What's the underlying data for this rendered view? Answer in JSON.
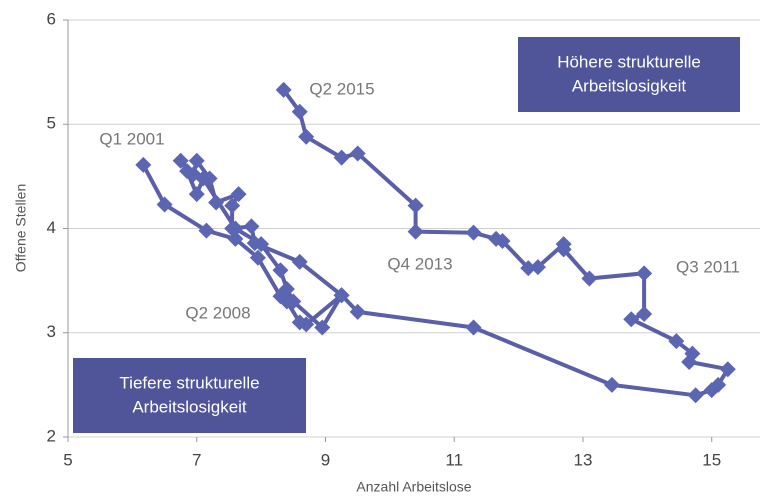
{
  "chart_data": {
    "type": "line",
    "x_label": "Anzahl Arbeitslose",
    "y_label": "Offene Stellen",
    "xlim": [
      5,
      15.75
    ],
    "xticks": [
      5,
      7,
      9,
      11,
      13,
      15
    ],
    "ylim": [
      2,
      6
    ],
    "yticks": [
      2,
      3,
      4,
      5,
      6
    ],
    "grid": true,
    "color": "#5a5fa8",
    "marker_color": "#5b66b3",
    "x": [
      6.17,
      6.5,
      7.15,
      7.6,
      7.95,
      8.3,
      8.4,
      8.6,
      8.7,
      9.25,
      8.6,
      7.9,
      7.85,
      7.55,
      7.55,
      7.65,
      7.3,
      7.2,
      7.0,
      6.95,
      6.75,
      6.85,
      7.0,
      7.1,
      7.6,
      8.0,
      8.3,
      8.4,
      8.5,
      8.95,
      9.25,
      9.5,
      11.3,
      13.45,
      14.75,
      15.0,
      15.1,
      15.25,
      14.65,
      14.7,
      14.45,
      13.75,
      13.95,
      13.95,
      13.1,
      12.7,
      12.7,
      12.3,
      12.15,
      11.75,
      11.65,
      11.3,
      10.4,
      10.4,
      9.5,
      9.25,
      8.7,
      8.6,
      8.35
    ],
    "values": [
      4.61,
      4.23,
      3.98,
      3.9,
      3.72,
      3.35,
      3.3,
      3.1,
      3.08,
      3.36,
      3.68,
      3.86,
      4.02,
      4.0,
      4.22,
      4.33,
      4.25,
      4.48,
      4.65,
      4.52,
      4.65,
      4.55,
      4.33,
      4.48,
      4.0,
      3.85,
      3.6,
      3.42,
      3.3,
      3.05,
      3.36,
      3.2,
      3.05,
      2.5,
      2.4,
      2.45,
      2.5,
      2.65,
      2.72,
      2.8,
      2.92,
      3.13,
      3.18,
      3.57,
      3.52,
      3.8,
      3.85,
      3.63,
      3.62,
      3.88,
      3.9,
      3.96,
      3.97,
      4.22,
      4.72,
      4.68,
      4.88,
      5.12,
      5.33
    ],
    "annotations": [
      "Q1 2001",
      "Q2 2015",
      "Q4 2013",
      "Q3 2011",
      "Q2 2008"
    ],
    "boxes": [
      [
        "Höhere strukturelle",
        "Arbeitslosigkeit"
      ],
      [
        "Tiefere strukturelle",
        "Arbeitslosigkeit"
      ]
    ],
    "box_color": "#4f5598"
  }
}
